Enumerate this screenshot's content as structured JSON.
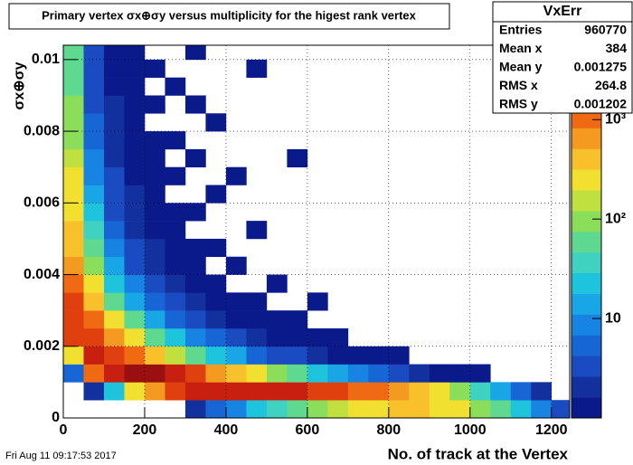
{
  "chart_data": {
    "type": "heatmap",
    "title": "Primary vertex σx⊕σy versus multiplicity for the higest rank vertex",
    "x_label": "No. of track at the Vertex",
    "y_label": "σx⊕σy",
    "timestamp": "Fri Aug 11 09:17:53 2017",
    "xlim": [
      0,
      1245
    ],
    "ylim": [
      0,
      0.0104
    ],
    "zlim": [
      1,
      5600
    ],
    "z_log": true,
    "grid": true,
    "xticks": [
      0,
      200,
      400,
      600,
      800,
      1000,
      1200
    ],
    "yticks": [
      0,
      0.002,
      0.004,
      0.006,
      0.008,
      0.01
    ],
    "zticks": [
      10,
      {
        "value": 100,
        "label": "10²"
      },
      {
        "value": 1000,
        "label": "10³"
      }
    ],
    "palette": [
      "#0b1a8a",
      "#13309f",
      "#1a4bc0",
      "#1766d6",
      "#1784e4",
      "#18a6e6",
      "#1ec3dc",
      "#3fd2c0",
      "#5fd890",
      "#8ade5a",
      "#c0e040",
      "#f2e030",
      "#f8c02a",
      "#f59a20",
      "#f06a14",
      "#e0400e",
      "#c82010",
      "#9a1010"
    ],
    "xbins": [
      0,
      50,
      100,
      150,
      200,
      250,
      300,
      350,
      400,
      450,
      500,
      550,
      600,
      650,
      700,
      750,
      800,
      850,
      900,
      950,
      1000,
      1050,
      1100,
      1150,
      1200,
      1250
    ],
    "ybins": [
      0,
      0.0005,
      0.001,
      0.0015,
      0.002,
      0.0025,
      0.003,
      0.0035,
      0.004,
      0.0045,
      0.005,
      0.0055,
      0.006,
      0.0065,
      0.007,
      0.0075,
      0.008,
      0.0085,
      0.009,
      0.0095,
      0.01,
      0.0105
    ],
    "z": [
      [
        0,
        0,
        5,
        300,
        1500,
        2000,
        1500,
        1000,
        700,
        500,
        400,
        300,
        250,
        200,
        150,
        120,
        100,
        80,
        70,
        60,
        50
      ],
      [
        0,
        2,
        1000,
        3000,
        2000,
        1000,
        500,
        250,
        120,
        70,
        40,
        25,
        15,
        10,
        8,
        6,
        5,
        4,
        3,
        3,
        3
      ],
      [
        0,
        20,
        3000,
        2000,
        600,
        200,
        60,
        25,
        12,
        7,
        5,
        4,
        3,
        3,
        2,
        2,
        2,
        2,
        1,
        1,
        1
      ],
      [
        0,
        200,
        3500,
        1000,
        200,
        50,
        15,
        7,
        4,
        3,
        2,
        2,
        2,
        1,
        1,
        1,
        1,
        1,
        1,
        1,
        1
      ],
      [
        0,
        800,
        3500,
        400,
        60,
        15,
        5,
        3,
        2,
        2,
        1,
        1,
        1,
        1,
        1,
        1,
        0,
        1,
        0,
        1,
        0
      ],
      [
        0,
        1500,
        2500,
        150,
        20,
        6,
        3,
        2,
        1,
        1,
        1,
        1,
        0,
        1,
        0,
        1,
        0,
        0,
        1,
        0,
        0
      ],
      [
        2,
        2500,
        1500,
        60,
        10,
        3,
        2,
        1,
        1,
        1,
        0,
        1,
        0,
        0,
        1,
        0,
        0,
        1,
        0,
        0,
        1
      ],
      [
        5,
        3000,
        800,
        25,
        5,
        2,
        1,
        1,
        0,
        1,
        0,
        0,
        1,
        0,
        0,
        0,
        1,
        0,
        0,
        0,
        0
      ],
      [
        10,
        3000,
        400,
        12,
        3,
        1,
        1,
        0,
        1,
        0,
        0,
        0,
        0,
        1,
        0,
        0,
        0,
        0,
        0,
        0,
        0
      ],
      [
        20,
        2800,
        200,
        6,
        2,
        1,
        1,
        0,
        0,
        0,
        1,
        0,
        0,
        0,
        0,
        0,
        0,
        0,
        0,
        1,
        0
      ],
      [
        40,
        2500,
        100,
        4,
        1,
        1,
        0,
        1,
        0,
        0,
        0,
        0,
        0,
        0,
        0,
        0,
        0,
        0,
        0,
        0,
        0
      ],
      [
        70,
        2200,
        50,
        3,
        1,
        1,
        0,
        0,
        0,
        0,
        0,
        0,
        0,
        0,
        1,
        0,
        0,
        0,
        0,
        0,
        0
      ],
      [
        100,
        1800,
        25,
        2,
        1,
        0,
        1,
        0,
        0,
        0,
        0,
        0,
        0,
        0,
        0,
        0,
        0,
        0,
        0,
        0,
        0
      ],
      [
        150,
        1500,
        15,
        1,
        1,
        0,
        0,
        0,
        0,
        0,
        0,
        0,
        0,
        0,
        0,
        0,
        0,
        0,
        0,
        0,
        0
      ],
      [
        200,
        1200,
        8,
        1,
        0,
        0,
        0,
        0,
        0,
        0,
        0,
        0,
        0,
        0,
        0,
        0,
        0,
        0,
        0,
        0,
        0
      ],
      [
        300,
        900,
        5,
        1,
        0,
        0,
        0,
        0,
        0,
        0,
        0,
        0,
        0,
        0,
        0,
        0,
        0,
        0,
        0,
        0,
        0
      ],
      [
        400,
        600,
        3,
        1,
        0,
        0,
        0,
        0,
        0,
        0,
        0,
        0,
        0,
        0,
        0,
        0,
        0,
        0,
        0,
        0,
        0
      ],
      [
        400,
        400,
        2,
        0,
        0,
        0,
        0,
        0,
        0,
        0,
        0,
        0,
        0,
        0,
        0,
        0,
        0,
        0,
        0,
        0,
        0
      ],
      [
        300,
        200,
        1,
        0,
        0,
        0,
        0,
        0,
        0,
        0,
        0,
        0,
        0,
        0,
        0,
        0,
        0,
        0,
        0,
        0,
        0
      ],
      [
        200,
        100,
        1,
        0,
        0,
        0,
        0,
        0,
        0,
        0,
        0,
        0,
        0,
        0,
        0,
        0,
        0,
        0,
        0,
        0,
        0
      ],
      [
        100,
        40,
        1,
        0,
        0,
        0,
        0,
        0,
        0,
        0,
        0,
        0,
        0,
        0,
        0,
        0,
        0,
        0,
        0,
        0,
        0
      ],
      [
        50,
        15,
        0,
        0,
        0,
        0,
        0,
        0,
        0,
        0,
        0,
        0,
        0,
        0,
        0,
        0,
        0,
        0,
        0,
        0,
        0
      ],
      [
        20,
        5,
        0,
        0,
        0,
        0,
        0,
        0,
        0,
        0,
        0,
        0,
        0,
        0,
        0,
        0,
        0,
        0,
        0,
        0,
        0
      ],
      [
        8,
        2,
        0,
        0,
        0,
        0,
        0,
        0,
        0,
        0,
        0,
        0,
        0,
        0,
        0,
        0,
        0,
        0,
        0,
        0,
        0
      ],
      [
        3,
        0,
        0,
        0,
        0,
        0,
        0,
        0,
        0,
        0,
        0,
        0,
        0,
        0,
        0,
        0,
        0,
        0,
        0,
        0,
        0
      ]
    ],
    "stats": {
      "title": "VxErr",
      "rows": [
        {
          "label": "Entries",
          "value": 960770
        },
        {
          "label": "Mean x",
          "value": 384
        },
        {
          "label": "Mean y",
          "value": 0.001275
        },
        {
          "label": "RMS x",
          "value": 264.8
        },
        {
          "label": "RMS y",
          "value": 0.001202
        }
      ]
    }
  }
}
